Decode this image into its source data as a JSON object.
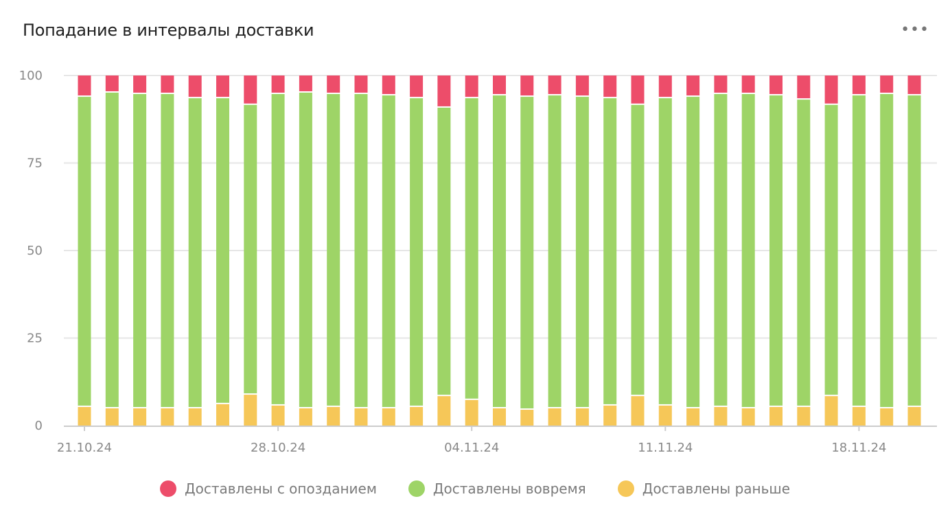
{
  "header": {
    "title": "Попадание в интервалы доставки",
    "menu_icon": "more-horizontal-icon",
    "menu_label": "•••"
  },
  "colors": {
    "late": "#ED4D6A",
    "on_time": "#9ED467",
    "early": "#F6C758",
    "grid": "#e6e6e6",
    "axis": "#cccccc"
  },
  "chart_data": {
    "type": "bar",
    "stacked": true,
    "title": "Попадание в интервалы доставки",
    "xlabel": "",
    "ylabel": "",
    "ylim": [
      0,
      100
    ],
    "yticks": [
      "0",
      "25",
      "50",
      "75",
      "100"
    ],
    "xticks": [
      "21.10.24",
      "28.10.24",
      "04.11.24",
      "11.11.24",
      "18.11.24"
    ],
    "grid": true,
    "legend_placement": "bottom",
    "categories": [
      "21.10.24",
      "22.10.24",
      "23.10.24",
      "24.10.24",
      "25.10.24",
      "26.10.24",
      "27.10.24",
      "28.10.24",
      "29.10.24",
      "30.10.24",
      "31.10.24",
      "01.11.24",
      "02.11.24",
      "03.11.24",
      "04.11.24",
      "05.11.24",
      "06.11.24",
      "07.11.24",
      "08.11.24",
      "09.11.24",
      "10.11.24",
      "11.11.24",
      "12.11.24",
      "13.11.24",
      "14.11.24",
      "15.11.24",
      "16.11.24",
      "17.11.24",
      "18.11.24",
      "19.11.24",
      "20.11.24"
    ],
    "series": [
      {
        "name": "Доставлены раньше",
        "key": "early",
        "values": [
          5.5,
          5.1,
          5.1,
          5.1,
          5.1,
          6.3,
          9.0,
          5.9,
          5.1,
          5.5,
          5.1,
          5.1,
          5.5,
          8.6,
          7.5,
          5.1,
          4.7,
          5.1,
          5.1,
          5.9,
          8.6,
          5.9,
          5.1,
          5.5,
          5.1,
          5.5,
          5.5,
          8.6,
          5.5,
          5.1,
          5.5
        ]
      },
      {
        "name": "Доставлены вовремя",
        "key": "on_time",
        "values": [
          88.6,
          90.2,
          89.8,
          89.8,
          88.6,
          87.4,
          82.8,
          89.0,
          90.2,
          89.4,
          89.8,
          89.4,
          88.2,
          82.4,
          86.2,
          89.4,
          89.4,
          89.4,
          89.0,
          87.8,
          83.2,
          87.8,
          89.0,
          89.4,
          89.8,
          89.0,
          87.8,
          83.2,
          89.0,
          89.8,
          89.0
        ]
      },
      {
        "name": "Доставлены с опозданием",
        "key": "late",
        "values": [
          5.9,
          4.7,
          5.1,
          5.1,
          6.3,
          6.3,
          8.2,
          5.1,
          4.7,
          5.1,
          5.1,
          5.5,
          6.3,
          9.0,
          6.3,
          5.5,
          5.9,
          5.5,
          5.9,
          6.3,
          8.2,
          6.3,
          5.9,
          5.1,
          5.1,
          5.5,
          6.7,
          8.2,
          5.5,
          5.1,
          5.5
        ]
      }
    ]
  },
  "legend": [
    {
      "label": "Доставлены с опозданием",
      "key": "late"
    },
    {
      "label": "Доставлены вовремя",
      "key": "on_time"
    },
    {
      "label": "Доставлены раньше",
      "key": "early"
    }
  ]
}
